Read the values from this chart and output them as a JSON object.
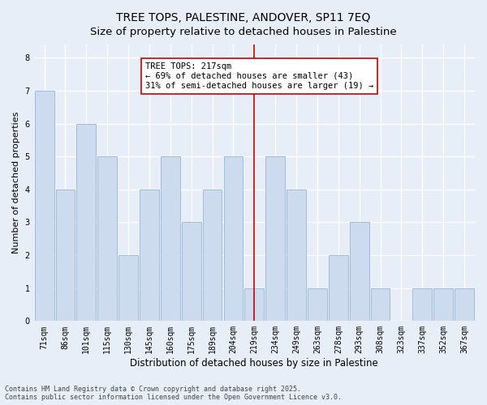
{
  "title": "TREE TOPS, PALESTINE, ANDOVER, SP11 7EQ",
  "subtitle": "Size of property relative to detached houses in Palestine",
  "xlabel": "Distribution of detached houses by size in Palestine",
  "ylabel": "Number of detached properties",
  "categories": [
    "71sqm",
    "86sqm",
    "101sqm",
    "115sqm",
    "130sqm",
    "145sqm",
    "160sqm",
    "175sqm",
    "189sqm",
    "204sqm",
    "219sqm",
    "234sqm",
    "249sqm",
    "263sqm",
    "278sqm",
    "293sqm",
    "308sqm",
    "323sqm",
    "337sqm",
    "352sqm",
    "367sqm"
  ],
  "values": [
    7,
    4,
    6,
    5,
    2,
    4,
    5,
    3,
    4,
    5,
    1,
    5,
    4,
    1,
    2,
    3,
    1,
    0,
    1,
    1,
    1
  ],
  "bar_color": "#ccdcee",
  "bar_edge_color": "#a0bcd8",
  "vline_x_index": 10,
  "vline_color": "#cc0000",
  "annotation_line1": "TREE TOPS: 217sqm",
  "annotation_line2": "← 69% of detached houses are smaller (43)",
  "annotation_line3": "31% of semi-detached houses are larger (19) →",
  "annotation_box_color": "#ffffff",
  "annotation_box_edge_color": "#cc0000",
  "ylim": [
    0,
    8.4
  ],
  "yticks": [
    0,
    1,
    2,
    3,
    4,
    5,
    6,
    7,
    8
  ],
  "background_color": "#e8eef8",
  "grid_color": "#ffffff",
  "footer": "Contains HM Land Registry data © Crown copyright and database right 2025.\nContains public sector information licensed under the Open Government Licence v3.0.",
  "title_fontsize": 10,
  "ylabel_fontsize": 8,
  "xlabel_fontsize": 8.5,
  "tick_fontsize": 7,
  "annotation_fontsize": 7.5,
  "footer_fontsize": 6
}
